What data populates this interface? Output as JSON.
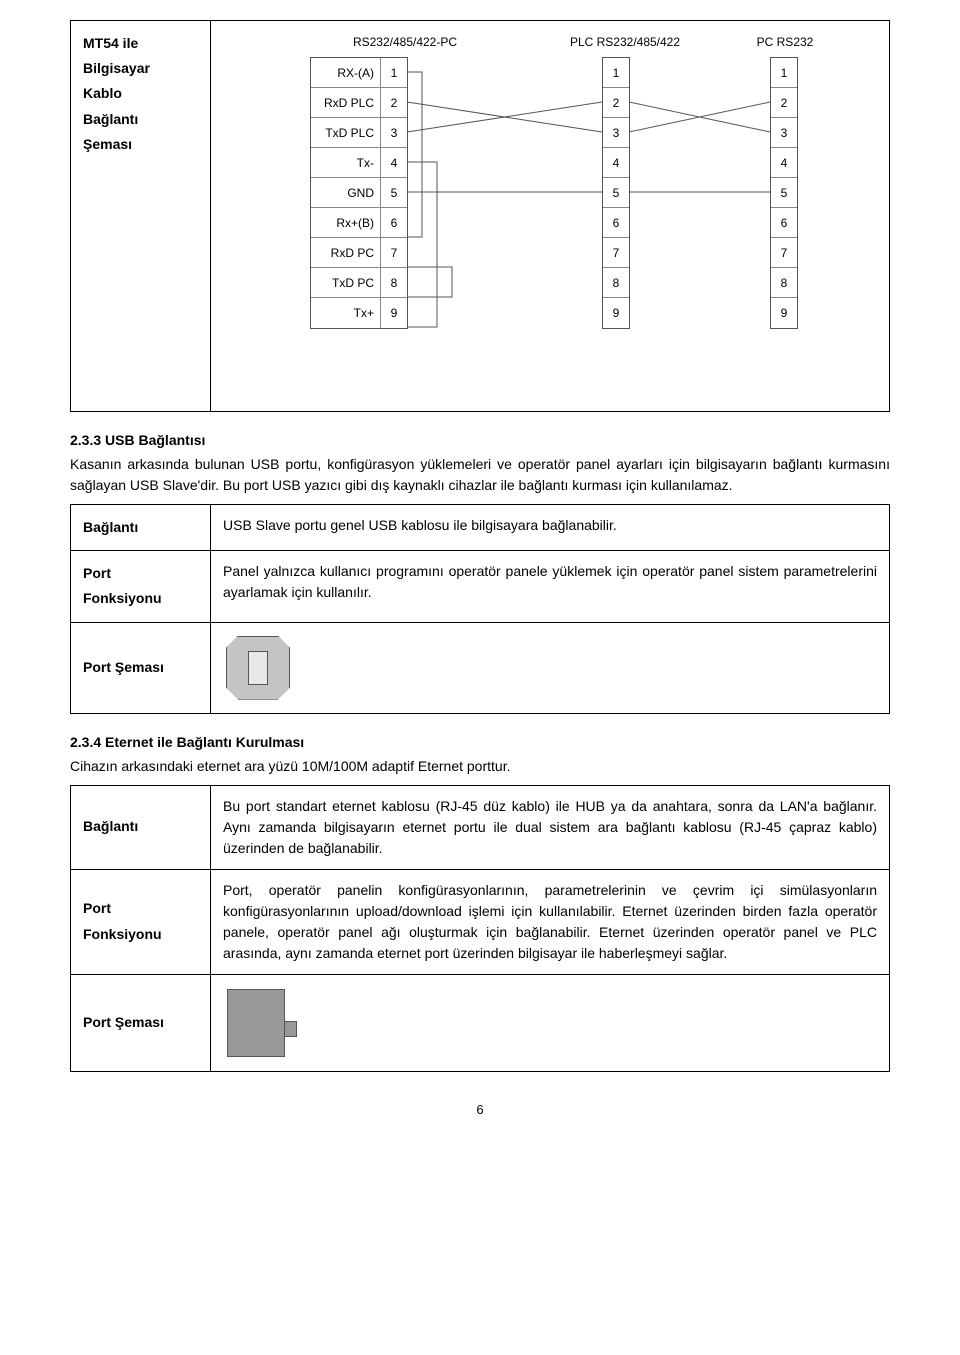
{
  "table1": {
    "left_lines": [
      "MT54 ile",
      "Bilgisayar",
      "Kablo",
      "Bağlantı",
      "Şeması"
    ]
  },
  "wiring": {
    "headers": [
      "RS232/485/422-PC",
      "PLC RS232/485/422",
      "PC RS232"
    ],
    "block1_pins": [
      {
        "label": "RX-(A)",
        "n": "1"
      },
      {
        "label": "RxD PLC",
        "n": "2"
      },
      {
        "label": "TxD PLC",
        "n": "3"
      },
      {
        "label": "Tx-",
        "n": "4"
      },
      {
        "label": "GND",
        "n": "5"
      },
      {
        "label": "Rx+(B)",
        "n": "6"
      },
      {
        "label": "RxD PC",
        "n": "7"
      },
      {
        "label": "TxD PC",
        "n": "8"
      },
      {
        "label": "Tx+",
        "n": "9"
      }
    ],
    "block2_pins": [
      "1",
      "2",
      "3",
      "4",
      "5",
      "6",
      "7",
      "8",
      "9"
    ],
    "block3_pins": [
      "1",
      "2",
      "3",
      "4",
      "5",
      "6",
      "7",
      "8",
      "9"
    ]
  },
  "section_usb": {
    "heading": "2.3.3 USB Bağlantısı",
    "intro": "Kasanın arkasında bulunan USB portu, konfigürasyon yüklemeleri ve operatör panel ayarları için bilgisayarın bağlantı kurmasını sağlayan USB Slave'dir. Bu port USB yazıcı gibi dış kaynaklı cihazlar ile bağlantı kurması için kullanılamaz.",
    "rows": {
      "baglanti_label": "Bağlantı",
      "baglanti_text": "USB Slave portu genel USB kablosu ile bilgisayara bağlanabilir.",
      "port_label_l1": "Port",
      "port_label_l2": "Fonksiyonu",
      "port_text": "Panel yalnızca kullanıcı programını operatör panele yüklemek için operatör panel sistem parametrelerini ayarlamak için kullanılır.",
      "sema_label": "Port Şeması"
    }
  },
  "section_eth": {
    "heading": "2.3.4 Eternet ile Bağlantı Kurulması",
    "intro": "Cihazın arkasındaki eternet ara yüzü 10M/100M adaptif Eternet porttur.",
    "rows": {
      "baglanti_label": "Bağlantı",
      "baglanti_text": "Bu port standart eternet kablosu (RJ-45 düz kablo) ile HUB ya da anahtara, sonra da LAN'a bağlanır. Aynı zamanda bilgisayarın eternet portu ile dual sistem ara bağlantı kablosu (RJ-45 çapraz kablo) üzerinden de bağlanabilir.",
      "port_label_l1": "Port",
      "port_label_l2": "Fonksiyonu",
      "port_text": "Port, operatör panelin konfigürasyonlarının, parametrelerinin ve çevrim içi simülasyonların konfigürasyonlarının upload/download işlemi için kullanılabilir. Eternet üzerinden birden fazla operatör panele, operatör panel ağı oluşturmak için bağlanabilir. Eternet üzerinden operatör panel ve PLC arasında, aynı zamanda eternet port üzerinden bilgisayar ile haberleşmeyi sağlar.",
      "sema_label": "Port Şeması"
    }
  },
  "page_number": "6"
}
